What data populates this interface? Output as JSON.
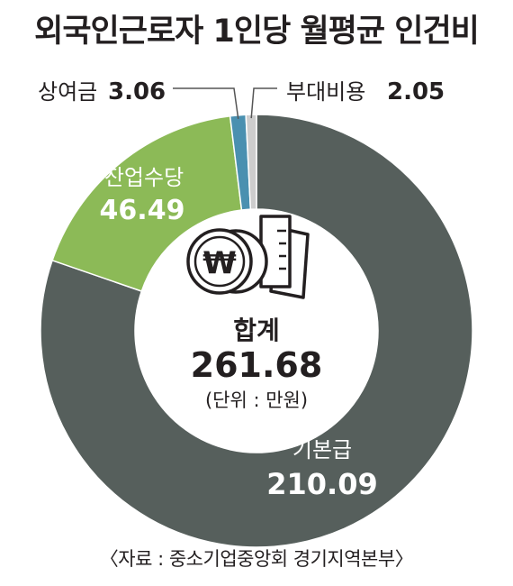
{
  "title": "외국인근로자 1인당 월평균 인건비",
  "source": "〈자료 : 중소기업중앙회 경기지역본부〉",
  "center": {
    "total_label": "합계",
    "total_value": "261.68",
    "unit": "(단위 : 만원)",
    "icon": "won-coins-and-documents-icon"
  },
  "chart_data": {
    "type": "pie",
    "title": "외국인근로자 1인당 월평균 인건비",
    "unit": "만원",
    "total": 261.68,
    "slices": [
      {
        "label": "기본급",
        "value": 210.09,
        "value_text": "210.09",
        "color": "#565f5c"
      },
      {
        "label": "잔업수당",
        "value": 46.49,
        "value_text": "46.49",
        "color": "#8cba57"
      },
      {
        "label": "상여금",
        "value": 3.06,
        "value_text": "3.06",
        "color": "#4a90b0"
      },
      {
        "label": "부대비용",
        "value": 2.05,
        "value_text": "2.05",
        "color": "#cdcdcd"
      }
    ]
  }
}
